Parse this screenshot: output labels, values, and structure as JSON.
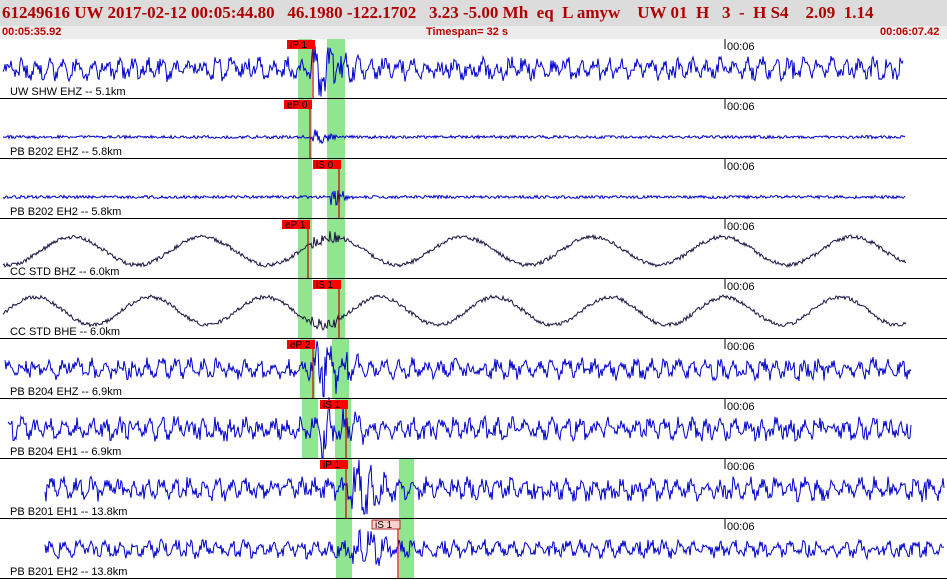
{
  "header": {
    "event_line": "61249616 UW 2017-02-12 00:05:44.80   46.1980 -122.1702   3.23 -5.00 Mh  eq  L amyw    UW 01  H   3  -  H S4    2.09  1.14"
  },
  "subheader": {
    "start_time": "00:05:35.92",
    "timespan": "Timespan=  32 s",
    "end_time": "00:06:07.42"
  },
  "colors": {
    "trace_blue": "#0000cc",
    "trace_dark": "#1a1440",
    "pick_band": "#8fe68f",
    "pick_box_red": "#ff0000",
    "pick_box_pink": "#ffd0d0",
    "pick_line": "#d00000",
    "header_text": "#b00000"
  },
  "channels": [
    {
      "label": "UW SHW EHZ -- 5.1km",
      "time_mark": "00:06",
      "picks": [
        "iP 1"
      ],
      "trace_color": "blue"
    },
    {
      "label": "PB B202 EHZ -- 5.8km",
      "time_mark": "00:06",
      "picks": [
        "eP 0"
      ],
      "trace_color": "blue"
    },
    {
      "label": "PB B202 EH2 -- 5.8km",
      "time_mark": "00:06",
      "picks": [
        "iS 0"
      ],
      "trace_color": "blue"
    },
    {
      "label": "CC STD BHZ -- 6.0km",
      "time_mark": "00:06",
      "picks": [
        "eP 1"
      ],
      "trace_color": "dark"
    },
    {
      "label": "CC STD BHE -- 6.0km",
      "time_mark": "00:06",
      "picks": [
        "iS 1"
      ],
      "trace_color": "dark"
    },
    {
      "label": "PB B204 EHZ -- 6.9km",
      "time_mark": "00:06",
      "picks": [
        "eP 2"
      ],
      "trace_color": "blue"
    },
    {
      "label": "PB B204 EH1 -- 6.9km",
      "time_mark": "00:06",
      "picks": [
        "iS 1"
      ],
      "trace_color": "blue"
    },
    {
      "label": "PB B201 EH1 -- 13.8km",
      "time_mark": "00:06",
      "picks": [
        "iP 1"
      ],
      "trace_color": "blue"
    },
    {
      "label": "PB B201 EH2 -- 13.8km",
      "time_mark": "00:06",
      "picks": [
        "iS 1"
      ],
      "trace_color": "blue"
    }
  ]
}
